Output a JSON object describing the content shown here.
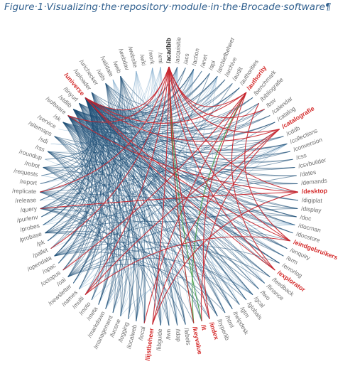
{
  "caption": "Figure·1·Visualizing·the·repository·module·in·the·Brocade·software¶",
  "colors": {
    "edge_default": "#1d4e76",
    "edge_light": "#6f9fc6",
    "edge_highlight": "#c8232c",
    "edge_green": "#3f9a3f",
    "label_normal": "#6e6e6e",
    "label_highlight": "#d42a2a",
    "label_focus": "#222222"
  },
  "nodes": [
    {
      "label": "/acadbib",
      "style": "focus"
    },
    {
      "label": "/acquisitie",
      "style": "normal"
    },
    {
      "label": "/acs",
      "style": "normal"
    },
    {
      "label": "/action",
      "style": "normal"
    },
    {
      "label": "/anet",
      "style": "normal"
    },
    {
      "label": "/api",
      "style": "normal"
    },
    {
      "label": "/archiefbeheer",
      "style": "normal"
    },
    {
      "label": "/archive",
      "style": "normal"
    },
    {
      "label": "/audit",
      "style": "normal"
    },
    {
      "label": "/authorities",
      "style": "normal"
    },
    {
      "label": "/authority",
      "style": "highlight"
    },
    {
      "label": "/benchmark",
      "style": "normal"
    },
    {
      "label": "/bibliografie",
      "style": "normal"
    },
    {
      "label": "/bsv",
      "style": "normal"
    },
    {
      "label": "/calendar",
      "style": "normal"
    },
    {
      "label": "/catalog",
      "style": "normal"
    },
    {
      "label": "/catalografie",
      "style": "highlight"
    },
    {
      "label": "/cddb",
      "style": "normal"
    },
    {
      "label": "/collections",
      "style": "normal"
    },
    {
      "label": "/conversion",
      "style": "normal"
    },
    {
      "label": "/css",
      "style": "normal"
    },
    {
      "label": "/csvbuilder",
      "style": "normal"
    },
    {
      "label": "/dates",
      "style": "normal"
    },
    {
      "label": "/demands",
      "style": "normal"
    },
    {
      "label": "/desktop",
      "style": "highlight"
    },
    {
      "label": "/digiplat",
      "style": "normal"
    },
    {
      "label": "/display",
      "style": "normal"
    },
    {
      "label": "/doc",
      "style": "normal"
    },
    {
      "label": "/docman",
      "style": "normal"
    },
    {
      "label": "/docstore",
      "style": "normal"
    },
    {
      "label": "/eindgebruikers",
      "style": "highlight"
    },
    {
      "label": "/enquiry",
      "style": "normal"
    },
    {
      "label": "/erm",
      "style": "normal"
    },
    {
      "label": "/errorlog",
      "style": "normal"
    },
    {
      "label": "/explorator",
      "style": "highlight"
    },
    {
      "label": "/feedback",
      "style": "normal"
    },
    {
      "label": "/finance",
      "style": "normal"
    },
    {
      "label": "/fwo",
      "style": "normal"
    },
    {
      "label": "/gcal",
      "style": "normal"
    },
    {
      "label": "/globals",
      "style": "normal"
    },
    {
      "label": "/gtm",
      "style": "normal"
    },
    {
      "label": "/helpdesk",
      "style": "normal"
    },
    {
      "label": "/html",
      "style": "normal"
    },
    {
      "label": "/hyperlib",
      "style": "normal"
    },
    {
      "label": "/index",
      "style": "highlight"
    },
    {
      "label": "/it",
      "style": "highlight"
    },
    {
      "label": "/keyvalue",
      "style": "highlight"
    },
    {
      "label": "/labels",
      "style": "normal"
    },
    {
      "label": "/ldap",
      "style": "normal"
    },
    {
      "label": "/lwn",
      "style": "normal"
    },
    {
      "label": "/libguide",
      "style": "normal"
    },
    {
      "label": "/lijstbeheer",
      "style": "highlight"
    },
    {
      "label": "/local",
      "style": "normal"
    },
    {
      "label": "/localweb",
      "style": "normal"
    },
    {
      "label": "/logging",
      "style": "normal"
    },
    {
      "label": "/lucene",
      "style": "normal"
    },
    {
      "label": "/management",
      "style": "normal"
    },
    {
      "label": "/markdown",
      "style": "normal"
    },
    {
      "label": "/meta",
      "style": "normal"
    },
    {
      "label": "/moto",
      "style": "normal"
    },
    {
      "label": "/multi",
      "style": "normal"
    },
    {
      "label": "/names",
      "style": "normal"
    },
    {
      "label": "/newsletter",
      "style": "normal"
    },
    {
      "label": "/oai",
      "style": "normal"
    },
    {
      "label": "/octopus",
      "style": "normal"
    },
    {
      "label": "/opac",
      "style": "normal"
    },
    {
      "label": "/opendata",
      "style": "normal"
    },
    {
      "label": "/pallet",
      "style": "normal"
    },
    {
      "label": "/pk",
      "style": "normal"
    },
    {
      "label": "/probase",
      "style": "normal"
    },
    {
      "label": "/probes",
      "style": "normal"
    },
    {
      "label": "/purlenv",
      "style": "normal"
    },
    {
      "label": "/query",
      "style": "normal"
    },
    {
      "label": "/release",
      "style": "normal"
    },
    {
      "label": "/replicate",
      "style": "normal"
    },
    {
      "label": "/report",
      "style": "normal"
    },
    {
      "label": "/requests",
      "style": "normal"
    },
    {
      "label": "/robot",
      "style": "normal"
    },
    {
      "label": "/roundup",
      "style": "normal"
    },
    {
      "label": "/rss",
      "style": "normal"
    },
    {
      "label": "/sdi",
      "style": "normal"
    },
    {
      "label": "/sitemaps",
      "style": "normal"
    },
    {
      "label": "/service",
      "style": "normal"
    },
    {
      "label": "/sk",
      "style": "normal"
    },
    {
      "label": "/software",
      "style": "normal"
    },
    {
      "label": "/stdlib",
      "style": "normal"
    },
    {
      "label": "/tinyurl",
      "style": "normal"
    },
    {
      "label": "/universe",
      "style": "highlight"
    },
    {
      "label": "/uploader",
      "style": "normal"
    },
    {
      "label": "/urichecker",
      "style": "normal"
    },
    {
      "label": "/utils",
      "style": "normal"
    },
    {
      "label": "/validate",
      "style": "normal"
    },
    {
      "label": "/web",
      "style": "normal"
    },
    {
      "label": "/webdav",
      "style": "normal"
    },
    {
      "label": "/website",
      "style": "normal"
    },
    {
      "label": "/wiki",
      "style": "normal"
    },
    {
      "label": "/work",
      "style": "normal"
    },
    {
      "label": "/xml",
      "style": "normal"
    }
  ],
  "links": [
    {
      "source": 0,
      "targets": [
        13,
        16,
        24,
        30,
        34,
        44,
        46,
        51,
        60,
        67,
        74,
        84,
        87
      ],
      "style": "highlight"
    },
    {
      "source": 10,
      "targets": [
        0,
        52,
        64,
        87,
        34,
        44
      ],
      "style": "highlight"
    },
    {
      "source": 16,
      "targets": [
        51,
        60,
        87,
        45
      ],
      "style": "highlight"
    },
    {
      "source": 24,
      "targets": [
        72,
        84,
        51
      ],
      "style": "highlight"
    },
    {
      "source": 30,
      "targets": [
        60,
        87,
        12
      ],
      "style": "highlight"
    },
    {
      "source": 34,
      "targets": [
        87
      ],
      "style": "highlight"
    },
    {
      "source": 46,
      "targets": [
        0,
        10
      ],
      "style": "green"
    },
    {
      "source": 45,
      "targets": [
        0
      ],
      "style": "green"
    },
    {
      "source": 87,
      "targets": [
        1,
        2,
        3,
        4,
        5,
        6,
        7,
        8,
        9,
        11,
        12,
        13,
        14,
        15,
        17,
        18,
        19,
        20,
        21,
        22,
        23,
        25,
        26,
        27,
        28,
        29,
        31,
        32,
        33,
        35,
        36,
        37,
        38,
        39,
        40,
        41,
        42,
        43,
        47,
        48,
        49,
        50,
        52,
        53,
        54,
        55,
        56,
        57,
        58,
        59,
        61,
        62,
        63,
        64,
        65,
        66,
        68,
        69,
        70,
        71,
        72,
        73,
        75,
        76
      ],
      "style": "default"
    },
    {
      "source": 85,
      "targets": [
        1,
        3,
        5,
        7,
        9,
        12,
        15,
        18,
        20,
        22,
        25,
        27,
        29,
        31,
        33,
        35,
        37,
        39,
        41,
        43,
        48,
        50,
        53,
        55,
        57,
        59,
        62,
        64,
        66,
        68,
        70
      ],
      "style": "default"
    },
    {
      "source": 84,
      "targets": [
        2,
        6,
        11,
        14,
        19,
        23,
        26,
        28,
        32,
        36,
        40,
        42,
        47,
        49,
        52,
        54,
        56,
        58,
        61,
        63,
        65,
        67,
        69,
        71
      ],
      "style": "default"
    },
    {
      "source": 83,
      "targets": [
        4,
        8,
        13,
        17,
        21,
        25,
        29,
        33,
        38,
        43,
        47,
        53,
        57,
        61,
        65,
        69
      ],
      "style": "default"
    },
    {
      "source": 86,
      "targets": [
        3,
        9,
        15,
        21,
        27,
        33,
        39,
        45,
        52,
        58,
        62,
        66,
        70,
        74
      ],
      "style": "default"
    },
    {
      "source": 90,
      "targets": [
        5,
        14,
        24,
        34,
        42,
        50,
        56,
        60,
        64,
        68,
        72
      ],
      "style": "default"
    },
    {
      "source": 88,
      "targets": [
        6,
        18,
        28,
        38,
        48,
        54,
        58,
        62,
        66,
        73,
        77
      ],
      "style": "default"
    },
    {
      "source": 92,
      "targets": [
        17,
        31,
        41,
        47,
        53,
        57,
        63,
        67,
        71,
        75,
        78
      ],
      "style": "default"
    },
    {
      "source": 79,
      "targets": [
        7,
        19,
        31,
        43,
        49,
        55,
        59,
        63
      ],
      "style": "default"
    },
    {
      "source": 81,
      "targets": [
        11,
        23,
        35,
        45,
        50,
        54,
        58
      ],
      "style": "default"
    },
    {
      "source": 74,
      "targets": [
        3,
        15,
        26,
        37,
        44,
        50,
        55
      ],
      "style": "default"
    },
    {
      "source": 77,
      "targets": [
        9,
        20,
        32,
        41,
        48,
        52,
        56
      ],
      "style": "default"
    },
    {
      "source": 72,
      "targets": [
        2,
        13,
        27,
        36,
        46,
        49,
        53
      ],
      "style": "default"
    },
    {
      "source": 69,
      "targets": [
        1,
        12,
        22,
        30,
        39,
        43,
        47
      ],
      "style": "default"
    },
    {
      "source": 66,
      "targets": [
        8,
        18,
        27,
        35,
        40,
        44
      ],
      "style": "default"
    },
    {
      "source": 63,
      "targets": [
        5,
        16,
        26,
        33,
        38,
        42
      ],
      "style": "default"
    },
    {
      "source": 96,
      "targets": [
        36,
        42,
        51,
        58,
        62,
        70,
        76,
        80
      ],
      "style": "light"
    },
    {
      "source": 94,
      "targets": [
        39,
        48,
        55,
        60,
        65,
        72,
        78,
        82
      ],
      "style": "light"
    },
    {
      "source": 97,
      "targets": [
        44,
        51,
        57,
        61,
        68,
        74,
        80
      ],
      "style": "light"
    },
    {
      "source": 91,
      "targets": [
        32,
        40,
        46,
        53,
        59,
        65,
        73
      ],
      "style": "light"
    },
    {
      "source": 1,
      "targets": [
        37,
        41,
        48,
        53,
        57,
        61,
        66,
        75
      ],
      "style": "light"
    },
    {
      "source": 3,
      "targets": [
        40,
        45,
        50,
        56,
        60,
        64,
        71,
        79
      ],
      "style": "light"
    },
    {
      "source": 6,
      "targets": [
        36,
        44,
        49,
        55,
        60,
        70,
        77
      ],
      "style": "light"
    },
    {
      "source": 18,
      "targets": [
        50,
        57,
        61,
        67,
        73,
        79
      ],
      "style": "light"
    },
    {
      "source": 28,
      "targets": [
        54,
        59,
        64,
        70,
        76
      ],
      "style": "light"
    },
    {
      "source": 38,
      "targets": [
        55,
        61,
        66,
        72,
        78
      ],
      "style": "light"
    }
  ]
}
